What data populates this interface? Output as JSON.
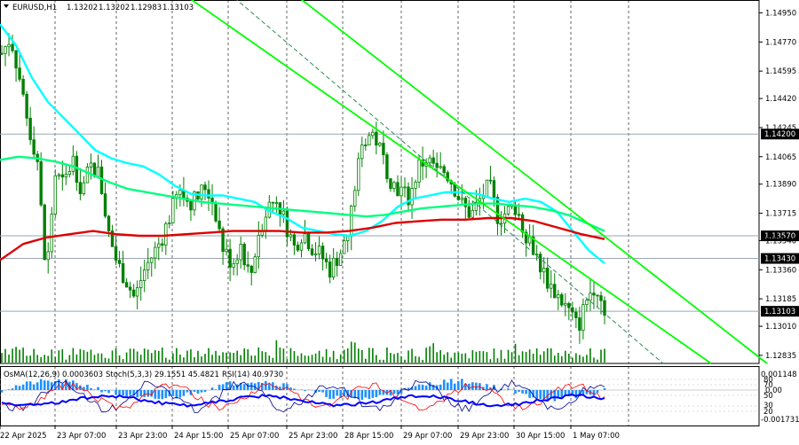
{
  "header": {
    "symbol": "EURUSD,H1",
    "open": "1.13202",
    "high": "1.13202",
    "low": "1.12983",
    "close": "1.13103"
  },
  "indicator_header": {
    "osma": "OsMA(12,26,9) 0.0003603",
    "stoch": "Stoch(5,3,3) 29.1551 45.4821",
    "rsi": "RSI(14) 40.9730"
  },
  "indicator_axis": {
    "top": "0.001148",
    "mid": "0.00",
    "bottom": "-0.001731",
    "levels": [
      "80",
      "70",
      "50",
      "30",
      "20"
    ]
  },
  "colors": {
    "candle": "#008000",
    "ma_fast": "#00ffff",
    "ma_mid": "#00ff7f",
    "ma_slow": "#dd0000",
    "channel": "#00ff00",
    "levels": "#9aa6b4",
    "badge": "#000000",
    "osma": "#1e90ff",
    "stoch_main": "#00008b",
    "stoch_signal": "#ff0000",
    "rsi": "#0000ff"
  },
  "chart_data": {
    "type": "candlestick",
    "symbol": "EURUSD",
    "timeframe": "H1",
    "ylim": [
      1.1278,
      1.1503
    ],
    "y_ticks": [
      1.1495,
      1.1477,
      1.1459,
      1.1442,
      1.1424,
      1.1406,
      1.1389,
      1.1371,
      1.1354,
      1.1336,
      1.1318,
      1.1301,
      1.1283
    ],
    "y_tick_labels": [
      "1.14950",
      "1.14770",
      "1.14595",
      "1.14420",
      "1.14245",
      "1.14065",
      "1.13890",
      "1.13715",
      "1.13540",
      "1.13360",
      "1.13185",
      "1.13010",
      "1.12835"
    ],
    "x_tick_labels": [
      "22 Apr 2025",
      "23 Apr 07:00",
      "23 Apr 23:00",
      "24 Apr 15:00",
      "25 Apr 07:00",
      "25 Apr 23:00",
      "28 Apr 15:00",
      "29 Apr 07:00",
      "29 Apr 23:00",
      "30 Apr 15:00",
      "1 May 07:00"
    ],
    "horizontal_levels": [
      {
        "value": 1.142,
        "label": "1.14200"
      },
      {
        "value": 1.1357,
        "label": "1.13570"
      },
      {
        "value": 1.1343,
        "label": "1.13430"
      },
      {
        "value": 1.13103,
        "label": "1.13103"
      }
    ],
    "price_path": [
      1.147,
      1.148,
      1.1455,
      1.1425,
      1.1405,
      1.133,
      1.1395,
      1.1388,
      1.1405,
      1.1385,
      1.14,
      1.1395,
      1.136,
      1.134,
      1.133,
      1.1318,
      1.1335,
      1.1345,
      1.1355,
      1.137,
      1.1385,
      1.1378,
      1.138,
      1.1388,
      1.1375,
      1.1348,
      1.134,
      1.1352,
      1.133,
      1.136,
      1.1375,
      1.138,
      1.1365,
      1.135,
      1.136,
      1.135,
      1.1345,
      1.1336,
      1.1345,
      1.1355,
      1.1395,
      1.1418,
      1.142,
      1.1405,
      1.139,
      1.1385,
      1.138,
      1.14,
      1.1405,
      1.1395,
      1.1398,
      1.1388,
      1.1375,
      1.137,
      1.138,
      1.1388,
      1.1368,
      1.1372,
      1.1375,
      1.136,
      1.135,
      1.1335,
      1.1325,
      1.1318,
      1.131,
      1.13,
      1.1318,
      1.1328,
      1.131
    ],
    "series": [
      {
        "name": "MA fast",
        "values": [
          1.1488,
          1.1475,
          1.1455,
          1.144,
          1.143,
          1.142,
          1.141,
          1.1405,
          1.1402,
          1.14,
          1.1395,
          1.1388,
          1.1383,
          1.1382,
          1.1382,
          1.138,
          1.1378,
          1.1372,
          1.1368,
          1.1362,
          1.136,
          1.1358,
          1.1357,
          1.136,
          1.1366,
          1.1375,
          1.138,
          1.1382,
          1.1384,
          1.1384,
          1.1383,
          1.138,
          1.1378,
          1.138,
          1.1378,
          1.1372,
          1.136,
          1.1348,
          1.134
        ]
      },
      {
        "name": "MA mid",
        "values": [
          1.1404,
          1.1406,
          1.1405,
          1.1403,
          1.14,
          1.1395,
          1.139,
          1.1386,
          1.1384,
          1.1382,
          1.138,
          1.1378,
          1.1377,
          1.1376,
          1.1375,
          1.1374,
          1.1373,
          1.1372,
          1.1371,
          1.137,
          1.1369,
          1.137,
          1.1372,
          1.1374,
          1.1375,
          1.1376,
          1.1377,
          1.1377,
          1.1376,
          1.1375,
          1.1373,
          1.137,
          1.1365,
          1.136
        ]
      },
      {
        "name": "MA slow",
        "values": [
          1.1342,
          1.1352,
          1.1356,
          1.1358,
          1.136,
          1.1358,
          1.1357,
          1.1357,
          1.1358,
          1.1359,
          1.136,
          1.136,
          1.136,
          1.1359,
          1.1359,
          1.136,
          1.1362,
          1.1365,
          1.1366,
          1.1367,
          1.1367,
          1.1368,
          1.1368,
          1.1366,
          1.1362,
          1.1358,
          1.1355
        ]
      }
    ],
    "channel_lines": [
      {
        "from": [
          0.22,
          1.151
        ],
        "to": [
          0.89,
          1.1278
        ]
      },
      {
        "from": [
          0.36,
          1.151
        ],
        "to": [
          0.96,
          1.1278
        ]
      },
      {
        "from": [
          0.28,
          1.151
        ],
        "to": [
          0.83,
          1.1278
        ]
      }
    ]
  }
}
